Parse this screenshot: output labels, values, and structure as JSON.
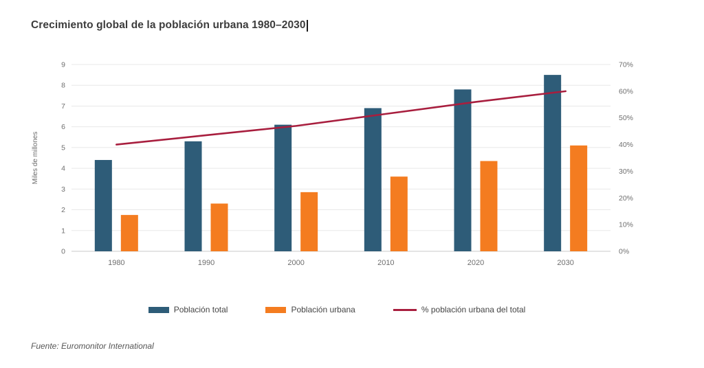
{
  "chart_data": {
    "type": "bar",
    "title": "Crecimiento global de la población urbana 1980–2030",
    "categories": [
      "1980",
      "1990",
      "2000",
      "2010",
      "2020",
      "2030"
    ],
    "series": [
      {
        "name": "Población total",
        "type": "bar",
        "axis": "left",
        "color": "#2e5c78",
        "values": [
          4.4,
          5.3,
          6.1,
          6.9,
          7.8,
          8.5
        ]
      },
      {
        "name": "Población urbana",
        "type": "bar",
        "axis": "left",
        "color": "#f47c20",
        "values": [
          1.75,
          2.3,
          2.85,
          3.6,
          4.35,
          5.1
        ]
      },
      {
        "name": "% población urbana del total",
        "type": "line",
        "axis": "right",
        "color": "#a81e3e",
        "values": [
          40,
          43.5,
          47,
          51.5,
          56,
          60
        ]
      }
    ],
    "ylabel_left": "Miles de millones",
    "left_axis": {
      "min": 0,
      "max": 9,
      "ticks": [
        0,
        1,
        2,
        3,
        4,
        5,
        6,
        7,
        8,
        9
      ]
    },
    "right_axis": {
      "min": 0,
      "max": 70,
      "tick_labels": [
        "0%",
        "10%",
        "20%",
        "30%",
        "40%",
        "50%",
        "60%",
        "70%"
      ]
    },
    "grid": true,
    "legend_position": "bottom"
  },
  "source": "Fuente: Euromonitor International",
  "colors": {
    "background": "#ffffff",
    "grid": "#e8e8e8",
    "axis": "#c8c8c8",
    "tick_text": "#6e6e6e",
    "title": "#3c3c3c"
  }
}
